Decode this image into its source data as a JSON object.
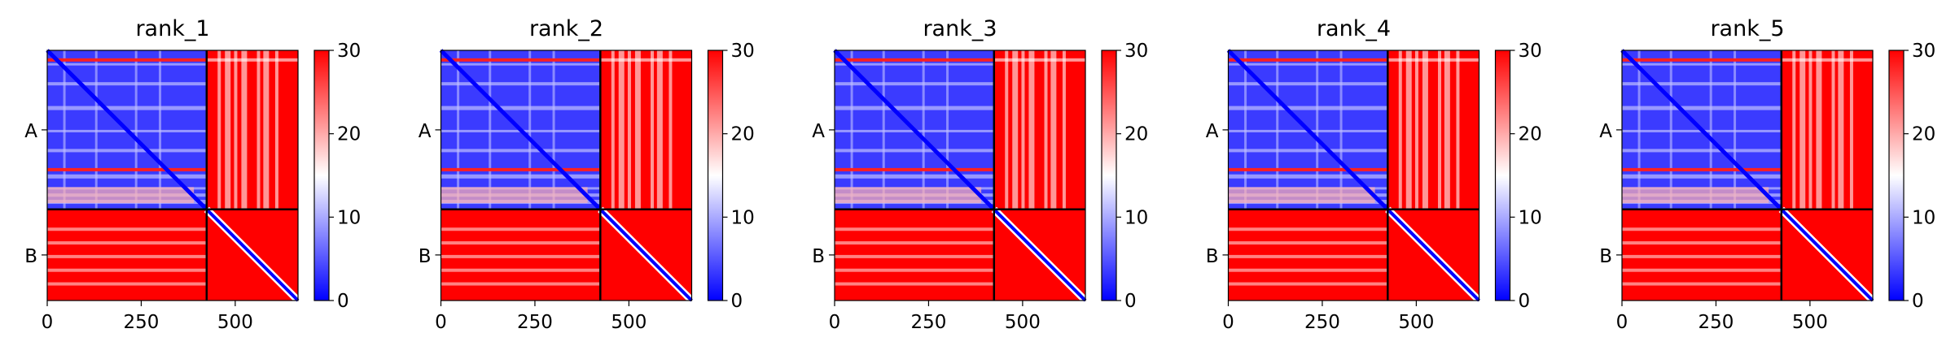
{
  "chart_data": {
    "type": "heatmap",
    "colormap": {
      "name": "bwr",
      "low": "#0000ff",
      "mid": "#ffffff",
      "high": "#ff0000"
    },
    "vmin": 0,
    "vmax": 30,
    "colorbar_ticks": [
      "0",
      "10",
      "20",
      "30"
    ],
    "x_tick_labels": [
      "0",
      "250",
      "500"
    ],
    "x_tick_values": [
      0,
      250,
      500
    ],
    "xlim": [
      0,
      667
    ],
    "y_chain_labels": [
      "A",
      "B"
    ],
    "chain_boundary": 424,
    "matrix_size": 667,
    "panels": [
      {
        "title": "rank_1"
      },
      {
        "title": "rank_2"
      },
      {
        "title": "rank_3"
      },
      {
        "title": "rank_4"
      },
      {
        "title": "rank_5"
      }
    ]
  }
}
